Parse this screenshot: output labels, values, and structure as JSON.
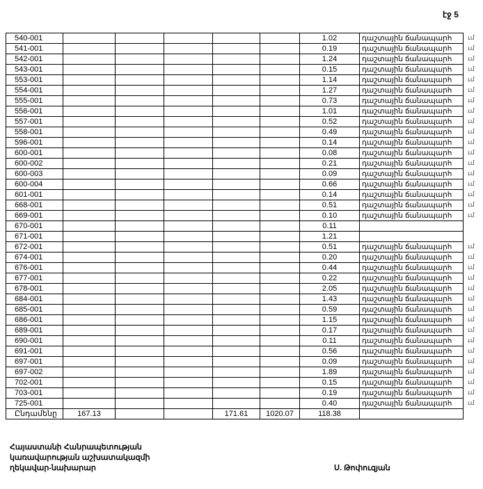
{
  "page_label": "էջ 5",
  "rows": [
    {
      "code": "540-001",
      "value": "1.02",
      "type": "դաշտային ճանապարհ",
      "mark": "ւմ"
    },
    {
      "code": "541-001",
      "value": "0.19",
      "type": "դաշտային ճանապարհ",
      "mark": "ւմ"
    },
    {
      "code": "542-001",
      "value": "1.24",
      "type": "դաշտային ճանապարհ",
      "mark": "ւմ"
    },
    {
      "code": "543-001",
      "value": "0.15",
      "type": "դաշտային ճանապարհ",
      "mark": "ւմ"
    },
    {
      "code": "553-001",
      "value": "1.14",
      "type": "դաշտային ճանապարհ",
      "mark": "ւմ"
    },
    {
      "code": "554-001",
      "value": "1.27",
      "type": "դաշտային ճանապարհ",
      "mark": "ւմ"
    },
    {
      "code": "555-001",
      "value": "0.73",
      "type": "դաշտային ճանապարհ",
      "mark": "ւմ"
    },
    {
      "code": "556-001",
      "value": "1.01",
      "type": "դաշտային ճանապարհ",
      "mark": "ւմ"
    },
    {
      "code": "557-001",
      "value": "0.52",
      "type": "դաշտային ճանապարհ",
      "mark": "ւմ"
    },
    {
      "code": "558-001",
      "value": "0.49",
      "type": "դաշտային ճանապարհ",
      "mark": "ւմ"
    },
    {
      "code": "596-001",
      "value": "0.14",
      "type": "դաշտային ճանապարհ",
      "mark": "ւմ"
    },
    {
      "code": "600-001",
      "value": "0.08",
      "type": "դաշտային ճանապարհ",
      "mark": "ւմ"
    },
    {
      "code": "600-002",
      "value": "0.21",
      "type": "դաշտային ճանապարհ",
      "mark": "ւմ"
    },
    {
      "code": "600-003",
      "value": "0.09",
      "type": "դաշտային ճանապարհ",
      "mark": "ւմ"
    },
    {
      "code": "600-004",
      "value": "0.66",
      "type": "դաշտային ճանապարհ",
      "mark": "ւմ"
    },
    {
      "code": "601-001",
      "value": "0.14",
      "type": "դաշտային ճանապարհ",
      "mark": "ւմ"
    },
    {
      "code": "668-001",
      "value": "0.51",
      "type": "դաշտային ճանապարհ",
      "mark": "ւմ"
    },
    {
      "code": "669-001",
      "value": "0.10",
      "type": "դաշտային ճանապարհ",
      "mark": "ւմ"
    },
    {
      "code": "670-001",
      "value": "0.11",
      "type": "",
      "mark": ""
    },
    {
      "code": "671-001",
      "value": "1.21",
      "type": "",
      "mark": ""
    },
    {
      "code": "672-001",
      "value": "0.51",
      "type": "դաշտային ճանապարհ",
      "mark": "ւմ"
    },
    {
      "code": "674-001",
      "value": "0.20",
      "type": "դաշտային ճանապարհ",
      "mark": "ւմ"
    },
    {
      "code": "676-001",
      "value": "0.44",
      "type": "դաշտային ճանապարհ",
      "mark": "ւմ"
    },
    {
      "code": "677-001",
      "value": "0.22",
      "type": "դաշտային ճանապարհ",
      "mark": "ւմ"
    },
    {
      "code": "678-001",
      "value": "2.05",
      "type": "դաշտային ճանապարհ",
      "mark": "ւմ"
    },
    {
      "code": "684-001",
      "value": "1.43",
      "type": "դաշտային ճանապարհ",
      "mark": "ւմ"
    },
    {
      "code": "685-001",
      "value": "0.59",
      "type": "դաշտային ճանապարհ",
      "mark": "ւմ"
    },
    {
      "code": "686-001",
      "value": "1.15",
      "type": "դաշտային ճանապարհ",
      "mark": "ւմ"
    },
    {
      "code": "689-001",
      "value": "0.17",
      "type": "դաշտային ճանապարհ",
      "mark": "ւմ"
    },
    {
      "code": "690-001",
      "value": "0.11",
      "type": "դաշտային ճանապարհ",
      "mark": "ւմ"
    },
    {
      "code": "691-001",
      "value": "0.56",
      "type": "դաշտային ճանապարհ",
      "mark": "ւմ"
    },
    {
      "code": "697-001",
      "value": "0.09",
      "type": "դաշտային ճանապարհ",
      "mark": "ւմ"
    },
    {
      "code": "697-002",
      "value": "1.89",
      "type": "դաշտային ճանապարհ",
      "mark": "ւմ"
    },
    {
      "code": "702-001",
      "value": "0.15",
      "type": "դաշտային ճանապարհ",
      "mark": "ւմ"
    },
    {
      "code": "703-001",
      "value": "0.19",
      "type": "դաշտային ճանապարհ",
      "mark": "ւմ"
    },
    {
      "code": "725-001",
      "value": "0.40",
      "type": "դաշտային ճանապարհ",
      "mark": "ւմ"
    }
  ],
  "total": {
    "label": "Ընդամենը",
    "c2": "167.13",
    "c3": "",
    "c4": "",
    "c5": "171.61",
    "c6": "1020.07",
    "c7": "118.38",
    "c8": ""
  },
  "footer": {
    "line1": "Հայաստանի Հանրապետության",
    "line2": "կառավարության աշխատակազմի",
    "line3": "ղեկավար-նախարար",
    "signatory": "Ս. Թոփուզյան"
  }
}
